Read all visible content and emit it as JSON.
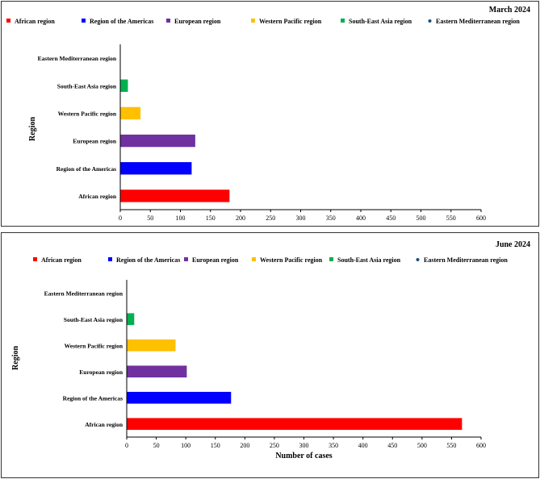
{
  "colors": {
    "African region": "#ff0000",
    "Region of the Americas": "#0000ff",
    "European region": "#7030a0",
    "Western Pacific region": "#ffc000",
    "South-East Asia region": "#00b050",
    "Eastern Mediterranean region": "#1f4e79"
  },
  "chart_data": [
    {
      "type": "bar",
      "orientation": "horizontal",
      "title": "March 2024",
      "legend": [
        "African  region",
        "Region  of  the  Americas",
        "European region",
        "Western Pacific region",
        "South-East Asia region",
        "Eastern Mediterranean region"
      ],
      "categories": [
        "African  region",
        "Region  of  the  Americas",
        "European region",
        "Western Pacific region",
        "South-East Asia region",
        "Eastern Mediterranean region"
      ],
      "values": [
        181,
        118,
        124,
        33,
        12,
        0
      ],
      "xlabel": "",
      "ylabel": "Region",
      "xlim": [
        0,
        600
      ],
      "xticks": [
        "0",
        "50",
        "100",
        "150",
        "200",
        "250",
        "300",
        "350",
        "400",
        "450",
        "500",
        "550",
        "600"
      ]
    },
    {
      "type": "bar",
      "orientation": "horizontal",
      "title": "June 2024",
      "legend": [
        "African  region",
        "Region  of  the  Americas",
        "European region",
        "Western Pacific region",
        "South-East Asia region",
        "Eastern Mediterranean region"
      ],
      "categories": [
        "African  region",
        "Region  of  the  Americas",
        "European region",
        "Western Pacific region",
        "South-East Asia region",
        "Eastern Mediterranean region"
      ],
      "values": [
        567,
        176,
        101,
        82,
        12,
        0
      ],
      "xlabel": "Number of cases",
      "ylabel": "Region",
      "xlim": [
        0,
        600
      ],
      "xticks": [
        "0",
        "50",
        "100",
        "150",
        "200",
        "250",
        "300",
        "350",
        "400",
        "450",
        "500",
        "550",
        "600"
      ]
    }
  ]
}
